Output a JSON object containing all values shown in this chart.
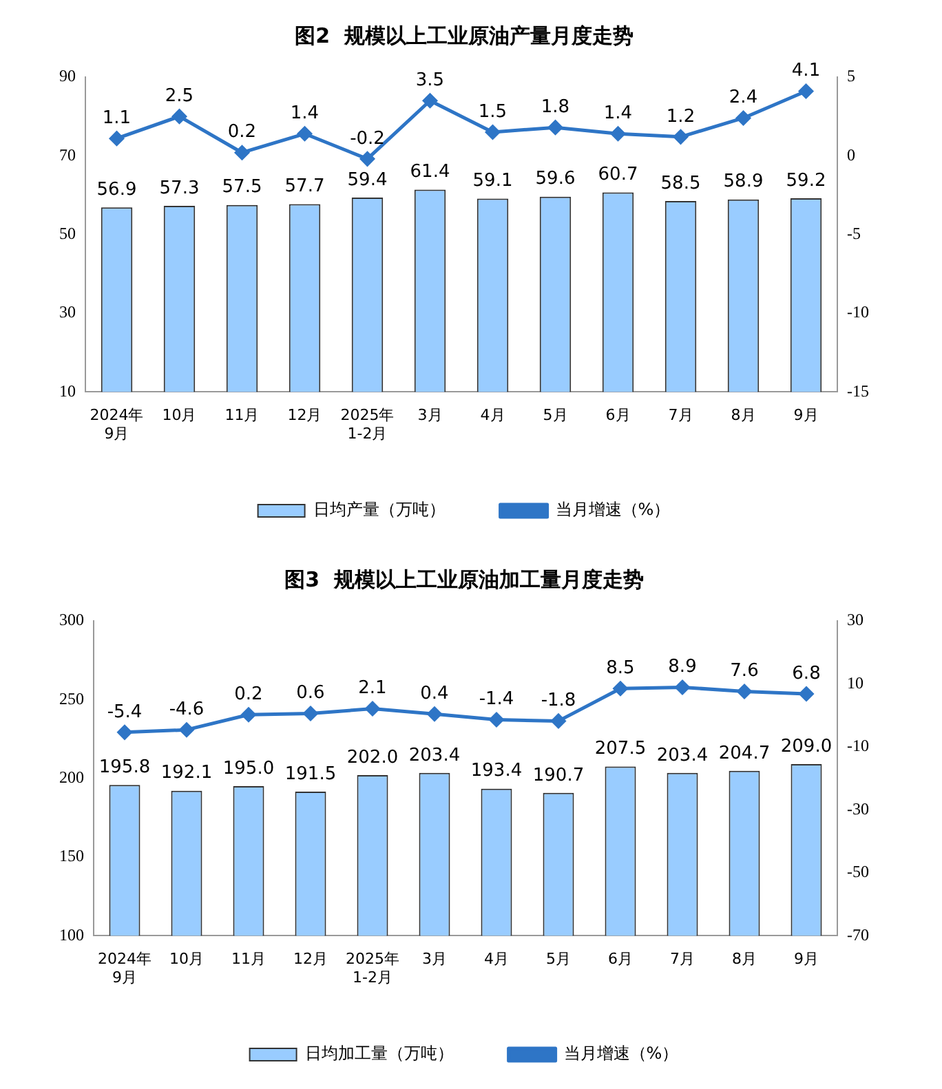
{
  "chart_data": [
    {
      "type": "bar",
      "title": "图2  规模以上工业原油产量月度走势",
      "categories": [
        "2024年\n9月",
        "10月",
        "11月",
        "12月",
        "2025年\n1-2月",
        "3月",
        "4月",
        "5月",
        "6月",
        "7月",
        "8月",
        "9月"
      ],
      "series": [
        {
          "name": "日均产量（万吨）",
          "color": "#99ccff",
          "values": [
            56.9,
            57.3,
            57.5,
            57.7,
            59.4,
            61.4,
            59.1,
            59.6,
            60.7,
            58.5,
            58.9,
            59.2
          ],
          "value_labels": [
            "56.9",
            "57.3",
            "57.5",
            "57.7",
            "59.4",
            "61.4",
            "59.1",
            "59.6",
            "60.7",
            "58.5",
            "58.9",
            "59.2"
          ]
        },
        {
          "name": "当月增速（%）",
          "type": "line",
          "axis": "y2",
          "color": "#2e75c6",
          "values": [
            1.1,
            2.5,
            0.2,
            1.4,
            -0.2,
            3.5,
            1.5,
            1.8,
            1.4,
            1.2,
            2.4,
            4.1
          ],
          "value_labels": [
            "1.1",
            "2.5",
            "0.2",
            "1.4",
            "-0.2",
            "3.5",
            "1.5",
            "1.8",
            "1.4",
            "1.2",
            "2.4",
            "4.1"
          ]
        }
      ],
      "ylim": [
        10,
        90
      ],
      "yticks": [
        10,
        30,
        50,
        70,
        90
      ],
      "y2lim": [
        -15,
        5
      ],
      "y2ticks": [
        -15,
        -10,
        -5,
        0,
        5
      ],
      "grid": false,
      "legend": "bottom",
      "marker": "diamond",
      "line_style": "solid"
    },
    {
      "type": "bar",
      "title": "图3  规模以上工业原油加工量月度走势",
      "categories": [
        "2024年\n9月",
        "10月",
        "11月",
        "12月",
        "2025年\n1-2月",
        "3月",
        "4月",
        "5月",
        "6月",
        "7月",
        "8月",
        "9月"
      ],
      "series": [
        {
          "name": "日均加工量（万吨）",
          "color": "#99ccff",
          "values": [
            195.8,
            192.1,
            195.0,
            191.5,
            202.0,
            203.4,
            193.4,
            190.7,
            207.5,
            203.4,
            204.7,
            209.0
          ],
          "value_labels": [
            "195.8",
            "192.1",
            "195.0",
            "191.5",
            "202.0",
            "203.4",
            "193.4",
            "190.7",
            "207.5",
            "203.4",
            "204.7",
            "209.0"
          ]
        },
        {
          "name": "当月增速（%）",
          "type": "line",
          "axis": "y2",
          "color": "#2e75c6",
          "values": [
            -5.4,
            -4.6,
            0.2,
            0.6,
            2.1,
            0.4,
            -1.4,
            -1.8,
            8.5,
            8.9,
            7.6,
            6.8
          ],
          "value_labels": [
            "-5.4",
            "-4.6",
            "0.2",
            "0.6",
            "2.1",
            "0.4",
            "-1.4",
            "-1.8",
            "8.5",
            "8.9",
            "7.6",
            "6.8"
          ]
        }
      ],
      "ylim": [
        100,
        300
      ],
      "yticks": [
        100,
        150,
        200,
        250,
        300
      ],
      "y2lim": [
        -70,
        30
      ],
      "y2ticks": [
        -70,
        -50,
        -30,
        -10,
        10,
        30
      ],
      "grid": false,
      "legend": "bottom",
      "marker": "diamond",
      "line_style": "solid"
    }
  ]
}
